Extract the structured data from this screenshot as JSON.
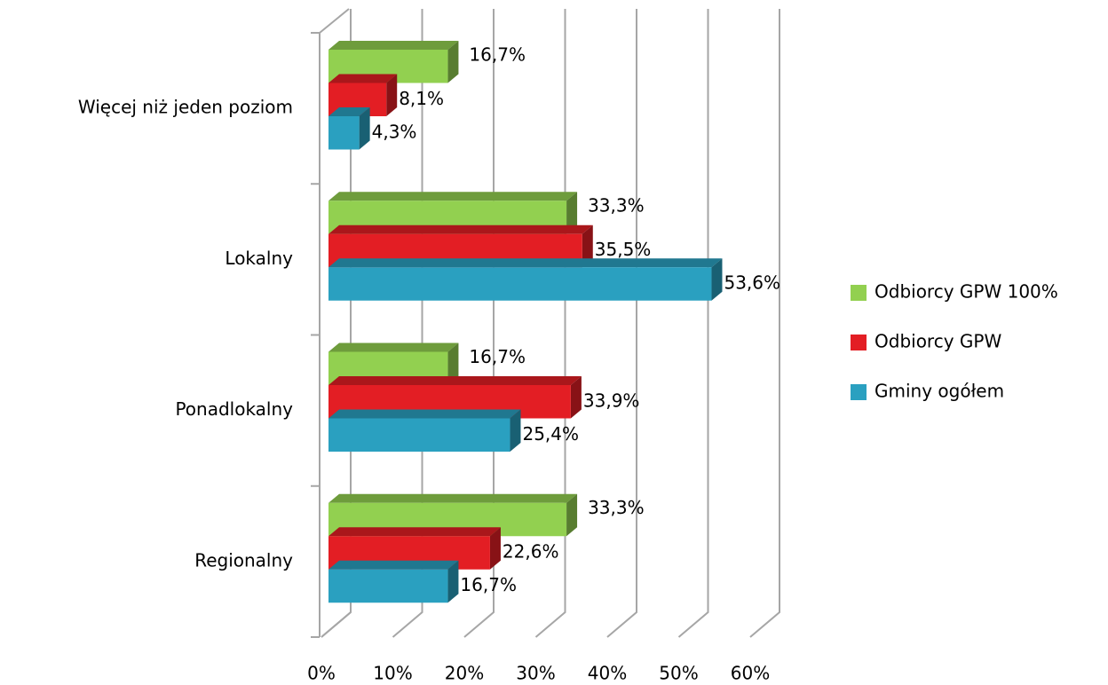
{
  "chart_data": {
    "type": "bar3d_horizontal",
    "categories": [
      "Więcej niż jeden poziom",
      "Lokalny",
      "Ponadlokalny",
      "Regionalny"
    ],
    "series": [
      {
        "name": "Odbiorcy GPW 100%",
        "color": "#92d050",
        "values": [
          16.7,
          33.3,
          16.7,
          33.3
        ],
        "value_labels": [
          "16,7%",
          "33,3%",
          "16,7%",
          "33,3%"
        ]
      },
      {
        "name": "Odbiorcy GPW",
        "color": "#e31e24",
        "values": [
          8.1,
          35.5,
          33.9,
          22.6
        ],
        "value_labels": [
          "8,1%",
          "35,5%",
          "33,9%",
          "22,6%"
        ]
      },
      {
        "name": "Gminy ogółem",
        "color": "#2aa0c0",
        "values": [
          4.3,
          53.6,
          25.4,
          16.7
        ],
        "value_labels": [
          "4,3%",
          "53,6%",
          "25,4%",
          "16,7%"
        ]
      }
    ],
    "xlim": [
      0,
      60
    ],
    "xticks": [
      {
        "value": 0,
        "label": "0%"
      },
      {
        "value": 10,
        "label": "10%"
      },
      {
        "value": 20,
        "label": "20%"
      },
      {
        "value": 30,
        "label": "30%"
      },
      {
        "value": 40,
        "label": "40%"
      },
      {
        "value": 50,
        "label": "50%"
      },
      {
        "value": 60,
        "label": "60%"
      }
    ],
    "grid": true,
    "legend": "right"
  }
}
